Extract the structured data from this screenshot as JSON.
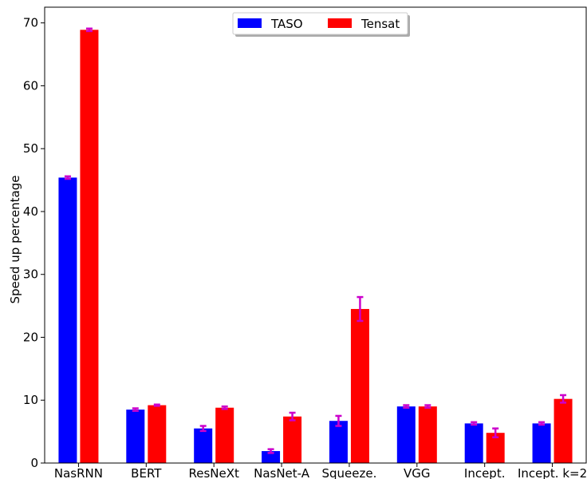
{
  "chart_data": {
    "type": "bar",
    "title": "",
    "xlabel": "",
    "ylabel": "Speed up percentage",
    "ylim": [
      0,
      72.5
    ],
    "yticks": [
      0,
      10,
      20,
      30,
      40,
      50,
      60,
      70
    ],
    "categories": [
      "NasRNN",
      "BERT",
      "ResNeXt",
      "NasNet-A",
      "Squeeze.",
      "VGG",
      "Incept.",
      "Incept. k=2"
    ],
    "series": [
      {
        "name": "TASO",
        "color": "#0000ff",
        "values": [
          45.4,
          8.5,
          5.5,
          1.9,
          6.7,
          9.0,
          6.3,
          6.3
        ],
        "errors": [
          0.2,
          0.2,
          0.4,
          0.3,
          0.8,
          0.2,
          0.2,
          0.2
        ]
      },
      {
        "name": "Tensat",
        "color": "#ff0000",
        "values": [
          68.9,
          9.2,
          8.8,
          7.4,
          24.5,
          9.0,
          4.8,
          10.2
        ],
        "errors": [
          0.2,
          0.1,
          0.2,
          0.6,
          1.9,
          0.2,
          0.7,
          0.6
        ]
      }
    ],
    "error_bar_color": "#cc00cc",
    "legend": {
      "placement": "top-center"
    },
    "grid": false
  }
}
